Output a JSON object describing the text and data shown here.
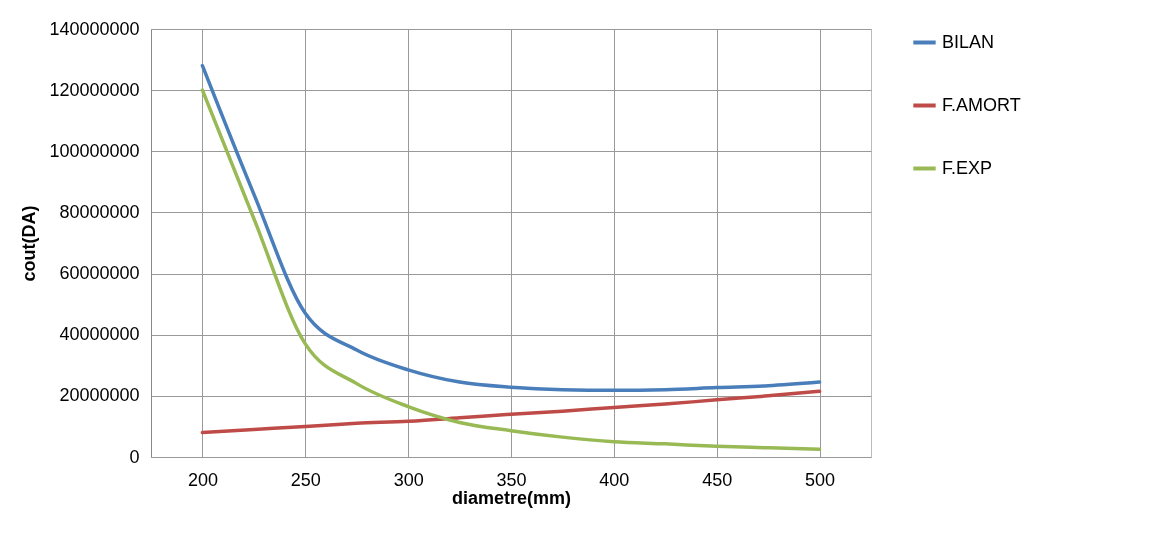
{
  "chart_data": {
    "type": "line",
    "xlabel": "diametre(mm)",
    "ylabel": "cout(DA)",
    "x": [
      200,
      225,
      250,
      275,
      300,
      325,
      350,
      375,
      400,
      425,
      450,
      475,
      500
    ],
    "series": [
      {
        "name": "BILAN",
        "color": "#4a7ebb",
        "values": [
          128000000,
          86000000,
          47000000,
          35000000,
          28500000,
          24500000,
          22800000,
          22000000,
          21800000,
          22000000,
          22700000,
          23300000,
          24500000
        ]
      },
      {
        "name": "F.AMORT",
        "color": "#be4b48",
        "values": [
          8000000,
          9000000,
          10000000,
          11000000,
          11700000,
          12800000,
          14000000,
          15000000,
          16200000,
          17300000,
          18700000,
          20000000,
          21500000
        ]
      },
      {
        "name": "F.EXP",
        "color": "#98b954",
        "values": [
          120000000,
          78000000,
          37000000,
          24000000,
          16500000,
          11300000,
          8600000,
          6500000,
          5000000,
          4300000,
          3500000,
          3000000,
          2500000
        ]
      }
    ],
    "xlim": [
      175,
      525
    ],
    "xticks": [
      200,
      250,
      300,
      350,
      400,
      450,
      500
    ],
    "ylim": [
      0,
      140000000
    ],
    "yticks": [
      0,
      20000000,
      40000000,
      60000000,
      80000000,
      100000000,
      120000000,
      140000000
    ],
    "grid": true,
    "legend": "right",
    "marker": "none",
    "line_style": "solid"
  }
}
